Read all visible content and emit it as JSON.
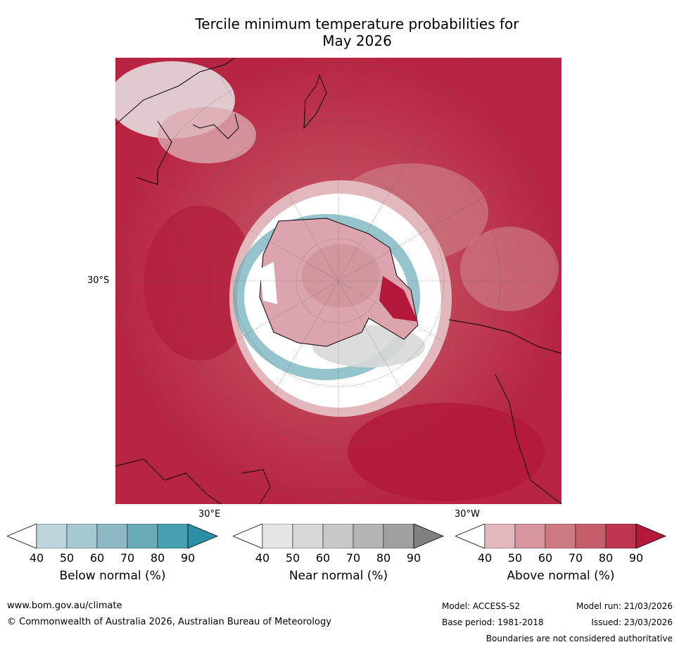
{
  "title_line1": "Tercile minimum temperature probabilities for",
  "title_line2": "May 2026",
  "map": {
    "lat_label": "30°S",
    "lon_label_east": "30°E",
    "lon_label_west": "30°W"
  },
  "colorbars": [
    {
      "label": "Below normal (%)",
      "ticks": [
        "40",
        "50",
        "60",
        "70",
        "80",
        "90"
      ],
      "colors": [
        "#ffffff",
        "#bdd5dc",
        "#a6c8cf",
        "#8db8c3",
        "#6aabb8",
        "#47a0b1",
        "#2d8fa3"
      ]
    },
    {
      "label": "Near normal (%)",
      "ticks": [
        "40",
        "50",
        "60",
        "70",
        "80",
        "90"
      ],
      "colors": [
        "#ffffff",
        "#e6e6e6",
        "#d8d8d8",
        "#c8c8c8",
        "#b4b4b4",
        "#a0a0a0",
        "#808080"
      ]
    },
    {
      "label": "Above normal (%)",
      "ticks": [
        "40",
        "50",
        "60",
        "70",
        "80",
        "90"
      ],
      "colors": [
        "#ffffff",
        "#e3b8bd",
        "#d6969e",
        "#cd7a85",
        "#c55d6b",
        "#bd3550",
        "#b4183a"
      ]
    }
  ],
  "footer": {
    "website": "www.bom.gov.au/climate",
    "copyright": "© Commonwealth of Australia 2026, Australian Bureau of Meteorology",
    "model": "Model: ACCESS-S2",
    "base_period": "Base period: 1981-2018",
    "model_run": "Model run: 21/03/2026",
    "issued": "Issued: 23/03/2026",
    "boundaries": "Boundaries are not considered authoritative"
  }
}
